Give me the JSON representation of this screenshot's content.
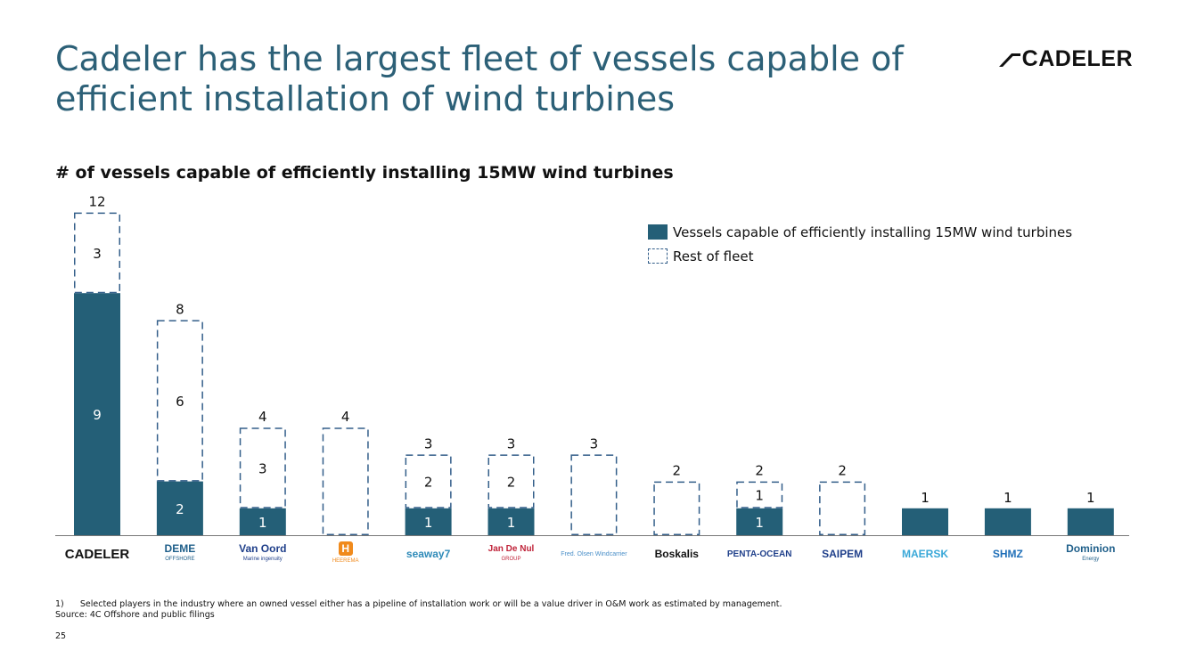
{
  "title": "Cadeler has the largest fleet of vessels capable of efficient installation of wind turbines",
  "brand": "CADELER",
  "subtitle": "# of vessels capable of efficiently installing 15MW wind turbines",
  "legend": {
    "capable": "Vessels capable of efficiently installing 15MW wind turbines",
    "rest": "Rest of fleet"
  },
  "colors": {
    "capable": "#245f77",
    "rest_border": "#345f8a",
    "title": "#2c6077"
  },
  "chart_data": {
    "type": "bar",
    "stacked": true,
    "categories": [
      "Cadeler",
      "DEME Offshore",
      "Van Oord",
      "Heerema",
      "Seaway7",
      "Jan De Nul",
      "Fred. Olsen Windcarrier",
      "Boskalis",
      "Penta-Ocean",
      "Saipem",
      "Maersk",
      "SHMZ",
      "Dominion Energy"
    ],
    "series": [
      {
        "name": "Vessels capable of efficiently installing 15MW wind turbines",
        "values": [
          9,
          2,
          1,
          0,
          1,
          1,
          0,
          0,
          1,
          0,
          1,
          1,
          1
        ]
      },
      {
        "name": "Rest of fleet",
        "values": [
          3,
          6,
          3,
          4,
          2,
          2,
          3,
          2,
          1,
          2,
          0,
          0,
          0
        ]
      }
    ],
    "totals": [
      12,
      8,
      4,
      4,
      3,
      3,
      3,
      2,
      2,
      2,
      1,
      1,
      1
    ],
    "ylim": [
      0,
      12
    ]
  },
  "logos": [
    {
      "text": "CADELER",
      "color": "#111111"
    },
    {
      "text": "DEME",
      "sub": "OFFSHORE",
      "color": "#1f5f8a"
    },
    {
      "text": "Van Oord",
      "sub": "Marine ingenuity",
      "color": "#1f3f8a"
    },
    {
      "text": "H",
      "sub": "HEEREMA",
      "color": "#f08a1c"
    },
    {
      "text": "seaway7",
      "color": "#2e8ab8"
    },
    {
      "text": "Jan De Nul",
      "sub": "GROUP",
      "color": "#c0243a"
    },
    {
      "text": "Fred. Olsen Windcarrier",
      "color": "#4a8fc8"
    },
    {
      "text": "Boskalis",
      "color": "#111111"
    },
    {
      "text": "PENTA-OCEAN",
      "color": "#1f3f8a"
    },
    {
      "text": "SAIPEM",
      "color": "#1f3f8a"
    },
    {
      "text": "MAERSK",
      "color": "#3aa8d8"
    },
    {
      "text": "SHMZ",
      "color": "#1f6fb8"
    },
    {
      "text": "Dominion",
      "sub": "Energy",
      "color": "#1f5f8a"
    }
  ],
  "footnote": {
    "line1": "1)      Selected players in the industry where an owned vessel either has a pipeline of installation work or will be a value driver in O&M work as estimated by management.",
    "line2": "Source: 4C Offshore and public filings"
  },
  "page_number": "25"
}
